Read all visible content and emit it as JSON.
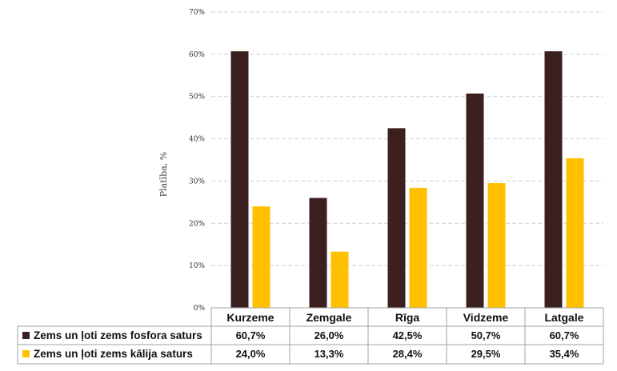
{
  "chart_data": {
    "type": "bar",
    "title": "",
    "xlabel": "",
    "ylabel": "Platība, %",
    "ylim": [
      0,
      70
    ],
    "yticks": [
      "0%",
      "10%",
      "20%",
      "30%",
      "40%",
      "50%",
      "60%",
      "70%"
    ],
    "grid": true,
    "categories": [
      "Kurzeme",
      "Zemgale",
      "Rīga",
      "Vidzeme",
      "Latgale"
    ],
    "series": [
      {
        "name": "Zems un ļoti zems fosfora saturs",
        "color": "#3c2020",
        "values": [
          60.7,
          26.0,
          42.5,
          50.7,
          60.7
        ],
        "labels": [
          "60,7%",
          "26,0%",
          "42,5%",
          "50,7%",
          "60,7%"
        ]
      },
      {
        "name": "Zems un ļoti zems kālija saturs",
        "color": "#ffc000",
        "values": [
          24.0,
          13.3,
          28.4,
          29.5,
          35.4
        ],
        "labels": [
          "24,0%",
          "13,3%",
          "28,4%",
          "29,5%",
          "35,4%"
        ]
      }
    ],
    "legend": "data-table-left"
  }
}
